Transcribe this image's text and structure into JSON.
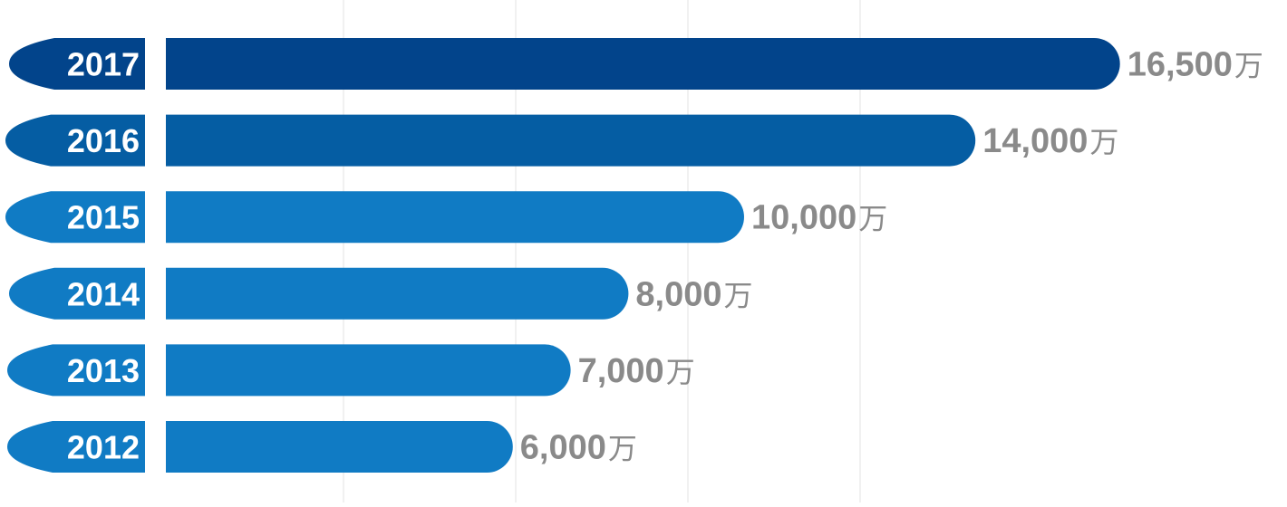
{
  "chart_data": {
    "type": "bar",
    "orientation": "horizontal",
    "categories": [
      "2017",
      "2016",
      "2015",
      "2014",
      "2013",
      "2012"
    ],
    "values": [
      16500,
      14000,
      10000,
      8000,
      7000,
      6000
    ],
    "value_labels": [
      "16,500",
      "14,000",
      "10,000",
      "8,000",
      "7,000",
      "6,000"
    ],
    "unit": "万",
    "grid": true,
    "legend": "none",
    "colors": {
      "2017": "#02448b",
      "2016": "#055da3",
      "2015": "#107bc4",
      "2014": "#107bc4",
      "2013": "#107bc4",
      "2012": "#107bc4",
      "label_text": "#8a8a8a",
      "grid": "#e3e3e3"
    }
  }
}
